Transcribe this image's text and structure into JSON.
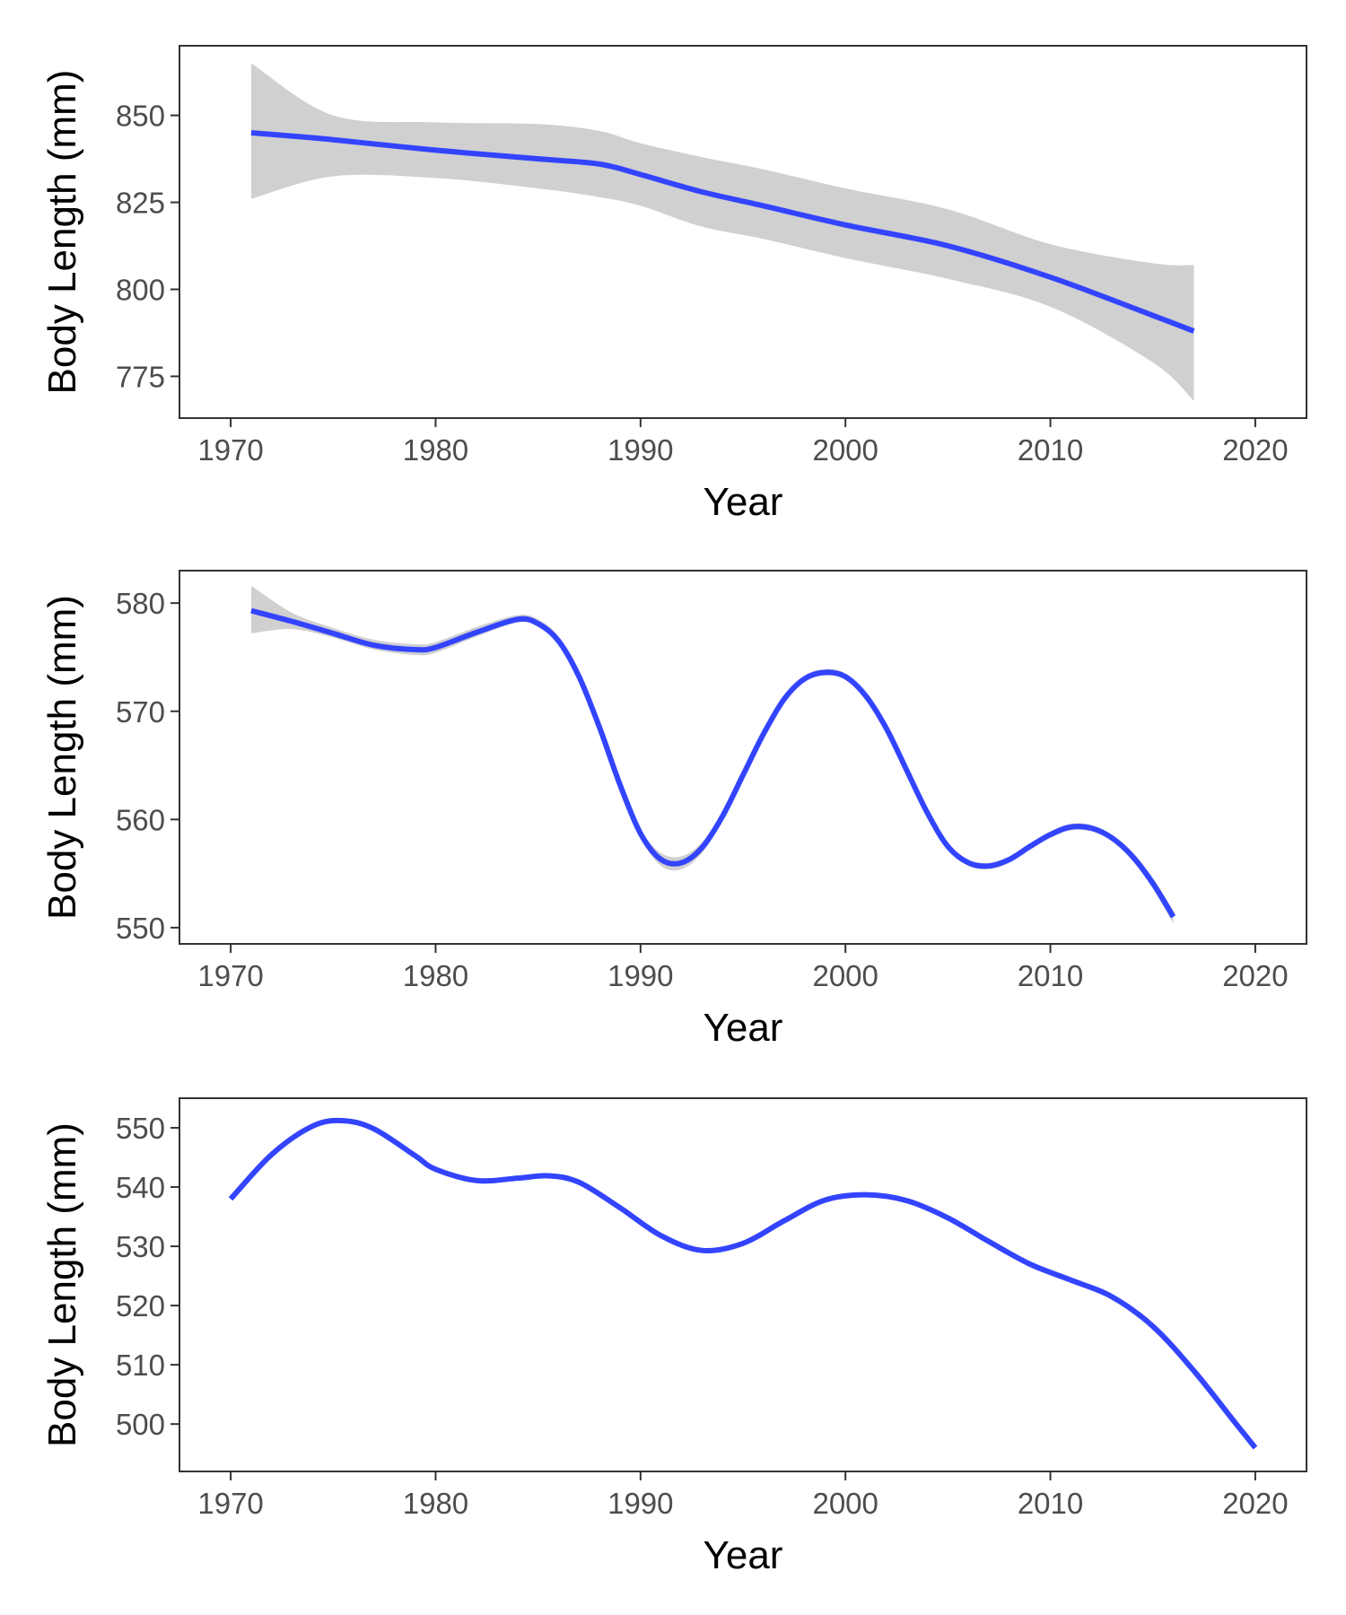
{
  "colors": {
    "line": "#3344ff",
    "ribbon": "#d0d0d0"
  },
  "chart_data": [
    {
      "type": "line",
      "title": "",
      "xlabel": "Year",
      "ylabel": "Body Length (mm)",
      "xlim": [
        1967.5,
        2022.5
      ],
      "ylim": [
        763,
        870
      ],
      "x_ticks": [
        1970,
        1980,
        1990,
        2000,
        2010,
        2020
      ],
      "y_ticks": [
        775,
        800,
        825,
        850
      ],
      "grid": false,
      "series": [
        {
          "x": [
            1971,
            1975,
            1980,
            1985,
            1988,
            1990,
            1993,
            1996,
            2000,
            2005,
            2010,
            2015,
            2017
          ],
          "y": [
            845,
            843,
            840,
            837.5,
            836,
            833,
            828,
            824,
            818.5,
            812.5,
            803.5,
            792.5,
            788
          ],
          "lower": [
            826,
            832.5,
            832,
            829,
            826.5,
            824,
            818,
            814.5,
            809,
            803,
            795,
            779,
            768
          ],
          "upper": [
            865,
            850,
            848,
            847.5,
            845.5,
            842,
            838,
            834.5,
            829,
            823,
            813,
            807.5,
            807
          ]
        }
      ]
    },
    {
      "type": "line",
      "title": "",
      "xlabel": "Year",
      "ylabel": "Body Length (mm)",
      "xlim": [
        1967.5,
        2022.5
      ],
      "ylim": [
        548.5,
        583
      ],
      "x_ticks": [
        1970,
        1980,
        1990,
        2000,
        2010,
        2020
      ],
      "y_ticks": [
        550,
        560,
        570,
        580
      ],
      "grid": false,
      "series": [
        {
          "x": [
            1971,
            1973,
            1975,
            1977,
            1979,
            1980,
            1982,
            1984,
            1985,
            1986,
            1987,
            1988,
            1989,
            1990,
            1991,
            1992,
            1993,
            1994,
            1995,
            1996,
            1997,
            1998,
            1999,
            2000,
            2001,
            2002,
            2003,
            2004,
            2005,
            2006,
            2007,
            2008,
            2009,
            2010,
            2011,
            2012,
            2013,
            2014,
            2015,
            2016
          ],
          "y": [
            579.3,
            578.3,
            577.2,
            576.1,
            575.7,
            575.9,
            577.3,
            578.5,
            578.1,
            576.5,
            573.2,
            568.5,
            563.2,
            558.7,
            556.3,
            556.0,
            557.4,
            560.3,
            564.1,
            567.9,
            571.1,
            573.0,
            573.6,
            573.2,
            571.4,
            568.4,
            564.5,
            560.6,
            557.5,
            556.0,
            555.7,
            556.3,
            557.5,
            558.6,
            559.3,
            559.2,
            558.3,
            556.6,
            554.1,
            551.0
          ],
          "lower": [
            577.2,
            577.6,
            576.8,
            575.7,
            575.2,
            575.4,
            576.9,
            578.2,
            577.8,
            576.2,
            572.9,
            568.2,
            562.9,
            558.3,
            555.7,
            555.4,
            556.9,
            559.9,
            563.8,
            567.6,
            570.8,
            572.7,
            573.3,
            572.9,
            571.1,
            568.1,
            564.2,
            560.3,
            557.2,
            555.7,
            555.4,
            556.0,
            557.2,
            558.3,
            559.0,
            558.9,
            558.0,
            556.2,
            553.6,
            550.4
          ],
          "upper": [
            581.6,
            579.1,
            577.7,
            576.6,
            576.2,
            576.4,
            577.8,
            578.9,
            578.5,
            576.9,
            573.6,
            568.9,
            563.6,
            559.1,
            556.9,
            556.6,
            557.9,
            560.7,
            564.4,
            568.2,
            571.4,
            573.3,
            573.9,
            573.5,
            571.7,
            568.7,
            564.8,
            560.9,
            557.8,
            556.3,
            556.0,
            556.6,
            557.8,
            558.9,
            559.6,
            559.5,
            558.6,
            557.0,
            554.6,
            551.6
          ]
        }
      ]
    },
    {
      "type": "line",
      "title": "",
      "xlabel": "Year",
      "ylabel": "Body Length (mm)",
      "xlim": [
        1967.5,
        2022.5
      ],
      "ylim": [
        492,
        555
      ],
      "x_ticks": [
        1970,
        1980,
        1990,
        2000,
        2010,
        2020
      ],
      "y_ticks": [
        500,
        510,
        520,
        530,
        540,
        550
      ],
      "grid": false,
      "series": [
        {
          "x": [
            1970,
            1972,
            1974,
            1975.5,
            1977,
            1979,
            1980,
            1982,
            1984,
            1985.5,
            1987,
            1989,
            1991,
            1993,
            1995,
            1997,
            1999,
            2001,
            2003,
            2005,
            2007,
            2009,
            2011,
            2013,
            2015,
            2017,
            2019,
            2020
          ],
          "y": [
            538,
            545.5,
            550.3,
            551.2,
            549.8,
            545.3,
            543,
            541.1,
            541.5,
            541.9,
            540.8,
            536.5,
            531.8,
            529.3,
            530.5,
            534.3,
            537.8,
            538.7,
            537.7,
            534.8,
            530.8,
            527,
            524.3,
            521.5,
            516.5,
            509,
            500.3,
            496
          ]
        }
      ]
    }
  ]
}
